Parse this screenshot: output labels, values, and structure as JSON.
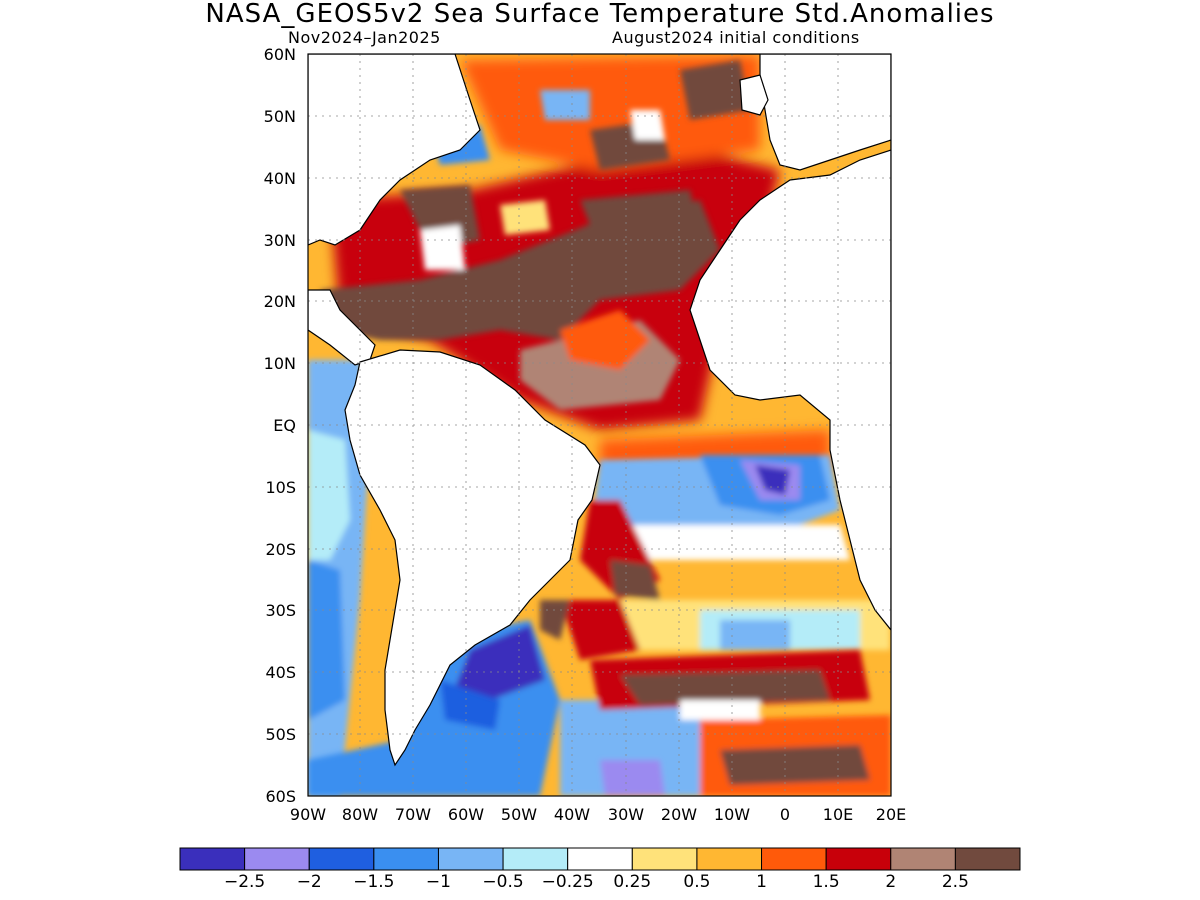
{
  "title": "NASA_GEOS5v2 Sea Surface Temperature Std.Anomalies",
  "subtitle_left": "Nov2024–Jan2025",
  "subtitle_right": "August2024 initial conditions",
  "latitude_labels": [
    "60N",
    "50N",
    "40N",
    "30N",
    "20N",
    "10N",
    "EQ",
    "10S",
    "20S",
    "30S",
    "40S",
    "50S",
    "60S"
  ],
  "longitude_labels": [
    "90W",
    "80W",
    "70W",
    "60W",
    "50W",
    "40W",
    "30W",
    "20W",
    "10W",
    "0",
    "10E",
    "20E"
  ],
  "colorbar": {
    "colors": [
      "#3a2fbc",
      "#9b8af0",
      "#1f5fe0",
      "#3a8ff0",
      "#78b5f5",
      "#b4ecf8",
      "#ffffff",
      "#ffe27a",
      "#ffb732",
      "#ff5a0a",
      "#c8000a",
      "#b08474",
      "#714a3e"
    ],
    "labels": [
      "−2.5",
      "−2",
      "−1.5",
      "−1",
      "−0.5",
      "−0.25",
      "0.25",
      "0.5",
      "1",
      "1.5",
      "2",
      "2.5"
    ]
  }
}
